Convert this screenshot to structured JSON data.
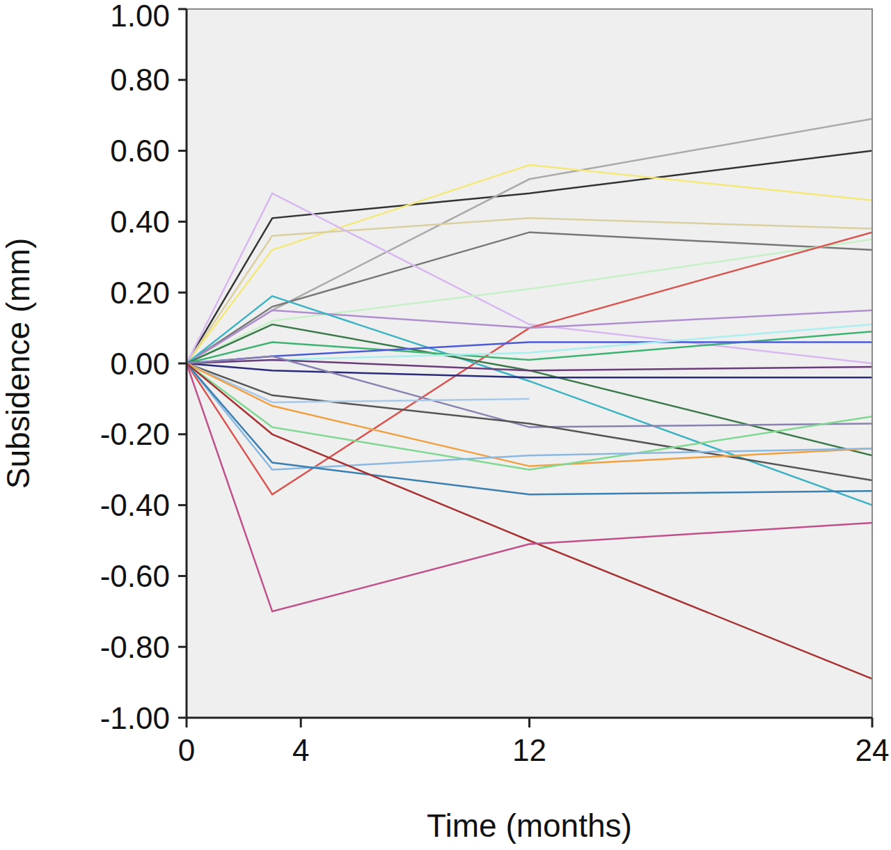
{
  "chart_data": {
    "type": "line",
    "x_label": "Time (months)",
    "y_label": "Subsidence (mm)",
    "x": [
      0,
      3,
      12,
      24
    ],
    "xlim": [
      0,
      24
    ],
    "xticks": [
      0,
      4,
      12,
      24
    ],
    "ylim": [
      -1,
      1
    ],
    "yticks": [
      {
        "value": -1,
        "label": "-1.00"
      },
      {
        "value": -0.8,
        "label": "-0.80"
      },
      {
        "value": -0.6,
        "label": "-0.60"
      },
      {
        "value": -0.4,
        "label": "-0.40"
      },
      {
        "value": -0.2,
        "label": "-0.20"
      },
      {
        "value": 0,
        "label": "0.00"
      },
      {
        "value": 0.2,
        "label": "0.20"
      },
      {
        "value": 0.4,
        "label": "0.40"
      },
      {
        "value": 0.6,
        "label": "0.60"
      },
      {
        "value": 0.8,
        "label": "0.80"
      },
      {
        "value": 1,
        "label": "1.00"
      }
    ],
    "grid": false,
    "series": [
      {
        "color": "#333333",
        "values": [
          0,
          0.41,
          0.48,
          0.6
        ]
      },
      {
        "color": "#aaaaaa",
        "values": [
          0,
          0.15,
          0.52,
          0.69
        ]
      },
      {
        "color": "#f5e87a",
        "values": [
          0,
          0.32,
          0.56,
          0.46
        ]
      },
      {
        "color": "#d9cfa0",
        "values": [
          0,
          0.36,
          0.41,
          0.38
        ]
      },
      {
        "color": "#777777",
        "values": [
          0,
          0.16,
          0.37,
          0.32
        ]
      },
      {
        "color": "#d8b8f0",
        "values": [
          0,
          0.48,
          0.11,
          0.0
        ]
      },
      {
        "color": "#c8f0c8",
        "values": [
          0,
          0.12,
          0.21,
          0.35
        ]
      },
      {
        "color": "#d9534f",
        "values": [
          0,
          -0.37,
          0.1,
          0.37
        ]
      },
      {
        "color": "#b08fd0",
        "values": [
          0,
          0.15,
          0.1,
          0.15
        ]
      },
      {
        "color": "#3bb3c3",
        "values": [
          0,
          0.19,
          -0.05,
          -0.4
        ]
      },
      {
        "color": "#3a7a4a",
        "values": [
          0,
          0.11,
          -0.02,
          -0.26
        ]
      },
      {
        "color": "#3cb371",
        "values": [
          0,
          0.06,
          0.01,
          0.09
        ]
      },
      {
        "color": "#4b5bd6",
        "values": [
          0,
          0.02,
          0.06,
          0.06
        ]
      },
      {
        "color": "#aaeeee",
        "values": [
          0,
          0.01,
          0.03,
          0.11
        ]
      },
      {
        "color": "#2a2a7a",
        "values": [
          0,
          -0.02,
          -0.04,
          -0.04
        ]
      },
      {
        "color": "#6a3d7a",
        "values": [
          0,
          0.01,
          -0.02,
          -0.01
        ]
      },
      {
        "color": "#8880b0",
        "values": [
          0,
          0.02,
          -0.18,
          -0.17
        ]
      },
      {
        "color": "#555555",
        "values": [
          0,
          -0.09,
          -0.17,
          -0.33
        ]
      },
      {
        "color": "#a8c8e8",
        "values": [
          0,
          -0.11,
          -0.1,
          null
        ]
      },
      {
        "color": "#f0a040",
        "values": [
          0,
          -0.12,
          -0.29,
          -0.24
        ]
      },
      {
        "color": "#7fd88f",
        "values": [
          0,
          -0.18,
          -0.3,
          -0.15
        ]
      },
      {
        "color": "#8ab8e0",
        "values": [
          0,
          -0.3,
          -0.26,
          -0.24
        ]
      },
      {
        "color": "#3a7fb0",
        "values": [
          0,
          -0.28,
          -0.37,
          -0.36
        ]
      },
      {
        "color": "#a83232",
        "values": [
          0,
          -0.2,
          -0.5,
          -0.89
        ]
      },
      {
        "color": "#c0508a",
        "values": [
          0,
          -0.7,
          -0.51,
          -0.45
        ]
      }
    ]
  }
}
